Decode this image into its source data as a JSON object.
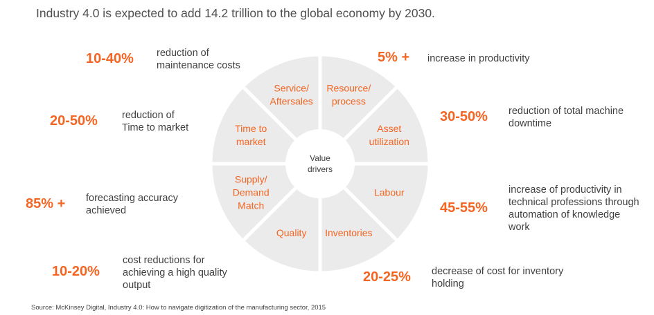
{
  "title": "Industry 4.0 is expected to add 14.2 trillion to the global economy by 2030.",
  "hub_label": [
    "Value",
    "drivers"
  ],
  "segments": [
    {
      "lines": [
        "Resource/",
        "process"
      ]
    },
    {
      "lines": [
        "Asset",
        "utilization"
      ]
    },
    {
      "lines": [
        "Labour"
      ]
    },
    {
      "lines": [
        "Inventories"
      ]
    },
    {
      "lines": [
        "Quality"
      ]
    },
    {
      "lines": [
        "Supply/",
        "Demand",
        "Match"
      ]
    },
    {
      "lines": [
        "Time to",
        "market"
      ]
    },
    {
      "lines": [
        "Service/",
        "Aftersales"
      ]
    }
  ],
  "impacts": {
    "maintenance": {
      "value": "10-40%",
      "text_1": "reduction of",
      "text_2": "maintenance costs"
    },
    "productivity": {
      "value": "5% +",
      "text_1": "increase in productivity"
    },
    "time_to_market": {
      "value": "20-50%",
      "text_1": "reduction of",
      "text_2": "Time to market"
    },
    "downtime": {
      "value": "30-50%",
      "text_1": "reduction of total machine",
      "text_2": "downtime"
    },
    "forecasting": {
      "value": "85% +",
      "text_1": "forecasting accuracy",
      "text_2": "achieved"
    },
    "labour": {
      "value": "45-55%",
      "text_1": "increase of productivity in",
      "text_2": "technical professions through",
      "text_3": "automation of knowledge",
      "text_4": "work"
    },
    "quality": {
      "value": "10-20%",
      "text_1": "cost reductions for",
      "text_2": "achieving a high quality",
      "text_3": "output"
    },
    "inventory": {
      "value": "20-25%",
      "text_1": "decrease of cost for inventory",
      "text_2": "holding"
    }
  },
  "source": "Source: McKinsey Digital, Industry 4.0: How to navigate digitization of the manufacturing sector, 2015"
}
